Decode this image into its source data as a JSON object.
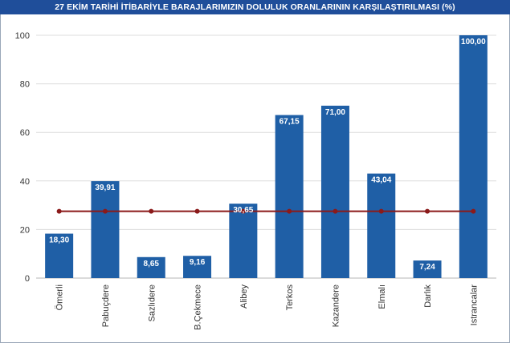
{
  "chart_data": {
    "type": "bar",
    "title": "27 EKİM TARİHİ İTİBARİYLE BARAJLARIMIZIN DOLULUK ORANLARININ KARŞILAŞTIRILMASI (%)",
    "categories": [
      "Ömerli",
      "Pabuçdere",
      "Sazlıdere",
      "B.Çekmece",
      "Alibey",
      "Terkos",
      "Kazandere",
      "Elmalı",
      "Darlık",
      "Istrancalar"
    ],
    "series": [
      {
        "type": "bar",
        "values": [
          18.3,
          39.91,
          8.65,
          9.16,
          30.65,
          67.15,
          71.0,
          43.04,
          7.24,
          100.0
        ],
        "labels": [
          "18,30",
          "39,91",
          "8,65",
          "9,16",
          "30,65",
          "67,15",
          "71,00",
          "43,04",
          "7,24",
          "100,00"
        ],
        "color": "#1f5fa6"
      },
      {
        "type": "line",
        "values": [
          27.5,
          27.5,
          27.5,
          27.5,
          27.5,
          27.5,
          27.5,
          27.5,
          27.5,
          27.5
        ],
        "color": "#8b1a1a"
      }
    ],
    "yticks": [
      "0",
      "20",
      "40",
      "60",
      "80",
      "100"
    ],
    "ylim": [
      0,
      100
    ],
    "grid": true,
    "legend": "none"
  }
}
